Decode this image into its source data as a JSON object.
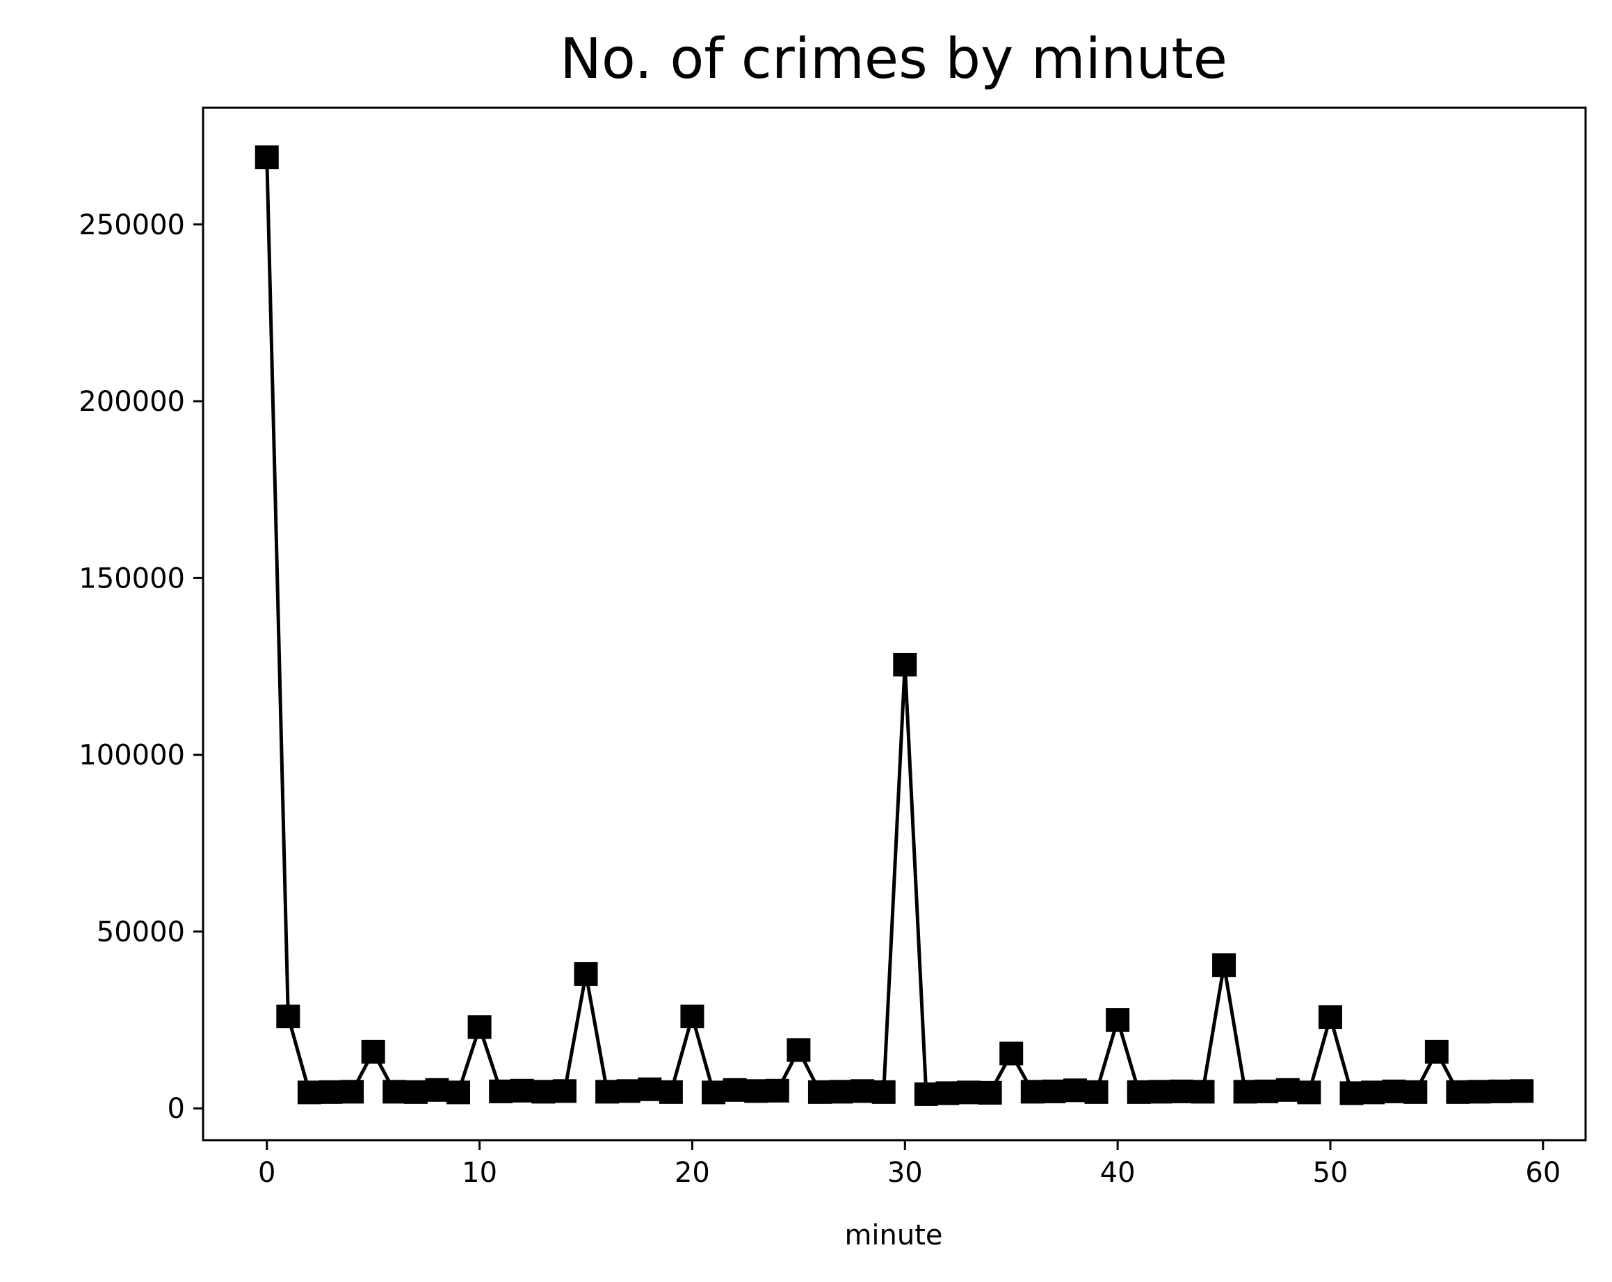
{
  "chart_data": {
    "type": "line",
    "title": "No. of crimes by minute",
    "xlabel": "minute",
    "ylabel": "",
    "xlim": [
      -3,
      62
    ],
    "ylim": [
      -9000,
      283000
    ],
    "xticks": [
      0,
      10,
      20,
      30,
      40,
      50,
      60
    ],
    "yticks": [
      0,
      50000,
      100000,
      150000,
      200000,
      250000
    ],
    "grid": false,
    "legend": "none",
    "line_color": "#000000",
    "marker": "square",
    "series": [
      {
        "x": [
          0,
          1,
          2,
          3,
          4,
          5,
          6,
          7,
          8,
          9,
          10,
          11,
          12,
          13,
          14,
          15,
          16,
          17,
          18,
          19,
          20,
          21,
          22,
          23,
          24,
          25,
          26,
          27,
          28,
          29,
          30,
          31,
          32,
          33,
          34,
          35,
          36,
          37,
          38,
          39,
          40,
          41,
          42,
          43,
          44,
          45,
          46,
          47,
          48,
          49,
          50,
          51,
          52,
          53,
          54,
          55,
          56,
          57,
          58,
          59
        ],
        "values": [
          269000,
          26000,
          4500,
          4600,
          4700,
          16000,
          4700,
          4600,
          5200,
          4500,
          23000,
          4800,
          5000,
          4700,
          4900,
          38000,
          4700,
          4900,
          5400,
          4600,
          26000,
          4500,
          5200,
          4900,
          5000,
          16500,
          4600,
          4700,
          4900,
          4600,
          125500,
          4000,
          4300,
          4500,
          4400,
          15500,
          4700,
          4800,
          5100,
          4600,
          25000,
          4600,
          4700,
          4800,
          4700,
          40500,
          4700,
          4800,
          5200,
          4500,
          25800,
          4300,
          4500,
          4800,
          4600,
          16000,
          4600,
          4700,
          4800,
          4900
        ]
      }
    ]
  }
}
